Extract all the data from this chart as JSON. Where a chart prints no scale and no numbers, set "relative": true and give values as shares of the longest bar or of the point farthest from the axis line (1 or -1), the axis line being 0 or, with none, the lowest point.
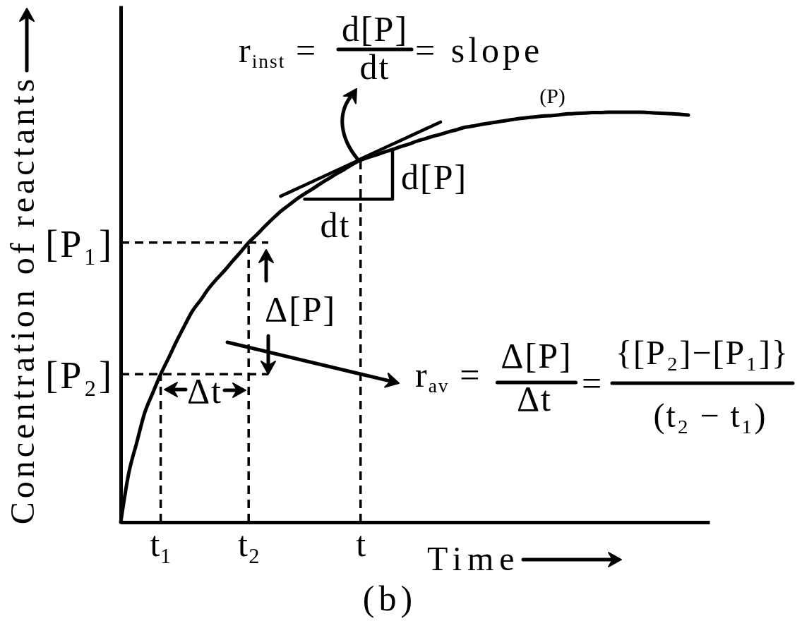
{
  "chart_data": {
    "type": "line",
    "relative": true,
    "xlabel": "Time",
    "ylabel": "Concentration of reactants",
    "categories": [
      null,
      null,
      null,
      null,
      null,
      "t₁",
      null,
      null,
      null,
      null,
      null,
      null,
      null,
      null,
      null,
      null,
      "t₂",
      null,
      null,
      null,
      null,
      null,
      null,
      null,
      null,
      null,
      null,
      null,
      null,
      null,
      "t",
      null,
      null,
      null,
      null,
      null,
      null,
      null,
      null,
      null,
      null,
      null,
      null,
      null,
      null,
      null,
      null,
      null,
      null,
      null,
      null,
      null,
      null,
      null,
      null,
      null,
      null,
      null,
      null,
      null,
      null,
      null,
      null,
      null,
      null,
      null,
      null,
      null,
      null,
      null,
      null,
      null
    ],
    "series": [
      {
        "name": "(P)",
        "color": "#000000",
        "values": [
          0,
          0.119,
          0.194,
          0.267,
          0.315,
          0.361,
          0.401,
          0.442,
          0.48,
          0.516,
          0.542,
          0.57,
          0.593,
          0.614,
          0.637,
          0.659,
          0.682,
          0.701,
          0.721,
          0.74,
          0.758,
          0.773,
          0.788,
          0.801,
          0.813,
          0.826,
          0.838,
          0.85,
          0.861,
          0.873,
          0.883,
          0.89,
          0.896,
          0.903,
          0.909,
          0.916,
          0.922,
          0.929,
          0.935,
          0.941,
          0.946,
          0.952,
          0.957,
          0.963,
          0.966,
          0.97,
          0.973,
          0.976,
          0.979,
          0.982,
          0.985,
          0.987,
          0.989,
          0.991,
          0.992,
          0.994,
          0.996,
          0.997,
          0.998,
          0.999,
          0.999,
          1.0,
          1.0,
          1.0,
          1.0,
          1.0,
          0.999,
          0.998,
          0.997,
          0.996,
          0.995,
          0.993
        ]
      },
      {
        "type": "line",
        "color": "#000000",
        "values": [
          null,
          null,
          null,
          null,
          null,
          null,
          null,
          null,
          null,
          null,
          null,
          null,
          null,
          null,
          null,
          null,
          null,
          null,
          null,
          null,
          0.795,
          0.804,
          0.813,
          0.822,
          0.831,
          0.84,
          0.849,
          0.858,
          0.867,
          0.876,
          0.886,
          0.895,
          0.904,
          0.913,
          0.922,
          0.931,
          0.94,
          0.949,
          0.958,
          0.967,
          0.976,
          null,
          null,
          null,
          null,
          null,
          null,
          null,
          null,
          null,
          null,
          null,
          null,
          null,
          null,
          null,
          null,
          null,
          null,
          null,
          null,
          null,
          null,
          null,
          null,
          null,
          null,
          null,
          null,
          null,
          null,
          null
        ]
      },
      {
        "type": "step",
        "color": "#000000",
        "values": [
          null,
          null,
          null,
          null,
          null,
          null,
          null,
          null,
          null,
          null,
          null,
          null,
          null,
          null,
          null,
          null,
          null,
          null,
          null,
          null,
          null,
          null,
          null,
          0.788,
          0.788,
          0.788,
          0.788,
          0.788,
          0.788,
          0.788,
          0.788,
          0.788,
          0.788,
          0.788,
          0.909,
          null,
          null,
          null,
          null,
          null,
          null,
          null,
          null,
          null,
          null,
          null,
          null,
          null,
          null,
          null,
          null,
          null,
          null,
          null,
          null,
          null,
          null,
          null,
          null,
          null,
          null,
          null,
          null,
          null,
          null,
          null,
          null,
          null,
          null,
          null,
          null,
          null
        ]
      }
    ],
    "ref_lines": [
      {
        "axis": "y",
        "value": 0.682,
        "label": "[P₁]",
        "line_style": "dashed"
      },
      {
        "axis": "y",
        "value": 0.361,
        "label": "[P₂]",
        "line_style": "dashed"
      },
      {
        "axis": "x",
        "value": "t₁",
        "line_style": "dashed"
      },
      {
        "axis": "x",
        "value": "t₂",
        "line_style": "dashed"
      },
      {
        "axis": "x",
        "value": "t",
        "line_style": "dashed"
      }
    ],
    "annotations": [
      "r$_{inst}$ =",
      "d[P]",
      "dt",
      "= slope",
      "d[P]",
      "dt",
      "Δ[P]",
      "Δt",
      "r$_{av}$ =",
      "Δ[P]",
      "Δt",
      "=",
      "{[P₂]−[P₁]}",
      "(t₂ − t₁)",
      "(b)"
    ]
  }
}
